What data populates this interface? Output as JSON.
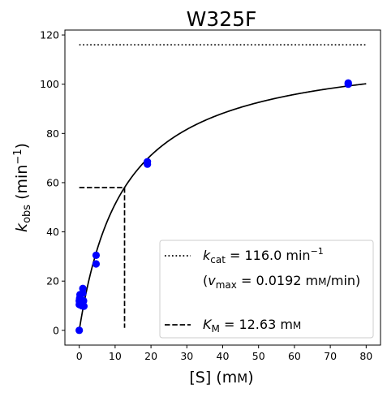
{
  "chart_data": {
    "type": "scatter",
    "title": "W325F",
    "xlabel": {
      "pre": "[S] (m",
      "small": "M",
      "post": ")"
    },
    "ylabel": {
      "pre": "k",
      "sub": "obs",
      "mid": " (min",
      "sup": "−1",
      "post": ")"
    },
    "xlim": [
      -4,
      84
    ],
    "ylim": [
      -6,
      122
    ],
    "xticks": [
      0,
      10,
      20,
      30,
      40,
      50,
      60,
      70,
      80
    ],
    "yticks": [
      0,
      20,
      40,
      60,
      80,
      100,
      120
    ],
    "grid": false,
    "legend_position": "lower-right",
    "kinetics": {
      "kcat": 116.0,
      "km": 12.63
    },
    "series": [
      {
        "kind": "points",
        "color": "#0000ff",
        "points": [
          [
            0,
            0
          ],
          [
            0,
            10.5
          ],
          [
            0,
            12
          ],
          [
            0.1,
            13
          ],
          [
            0.2,
            14.5
          ],
          [
            0.5,
            11
          ],
          [
            0.7,
            10
          ],
          [
            1,
            15
          ],
          [
            1,
            17
          ],
          [
            1.2,
            12
          ],
          [
            1.3,
            9.8
          ],
          [
            4.7,
            30.5
          ],
          [
            4.7,
            27
          ],
          [
            19,
            68.5
          ],
          [
            19,
            67.5
          ],
          [
            75,
            100.5
          ],
          [
            75,
            100
          ]
        ]
      },
      {
        "kind": "fit-curve",
        "color": "#000000",
        "x_range": [
          0,
          80
        ]
      },
      {
        "kind": "kcat-line",
        "style": "dotted",
        "x_range": [
          0,
          80
        ]
      },
      {
        "kind": "km-guide",
        "style": "dashed",
        "x_start": 0,
        "y_end": 1
      }
    ],
    "legend": [
      {
        "style": "dotted",
        "parts": [
          {
            "t": "k"
          },
          {
            "t": "cat",
            "sub": true
          },
          {
            "t": " = 116.0 min"
          },
          {
            "t": "−1",
            "sup": true
          }
        ]
      },
      {
        "style": "none",
        "parts": [
          {
            "t": "("
          },
          {
            "t": "v",
            "italic": true
          },
          {
            "t": "max",
            "sub": true
          },
          {
            "t": " = 0.0192 m"
          },
          {
            "t": "M",
            "smallcaps": true
          },
          {
            "t": "/min)"
          }
        ]
      },
      {
        "style": "dashed",
        "parts": [
          {
            "t": "K",
            "italic": true
          },
          {
            "t": "M",
            "sub": true
          },
          {
            "t": " = 12.63 m"
          },
          {
            "t": "M",
            "smallcaps": true
          }
        ]
      }
    ]
  }
}
